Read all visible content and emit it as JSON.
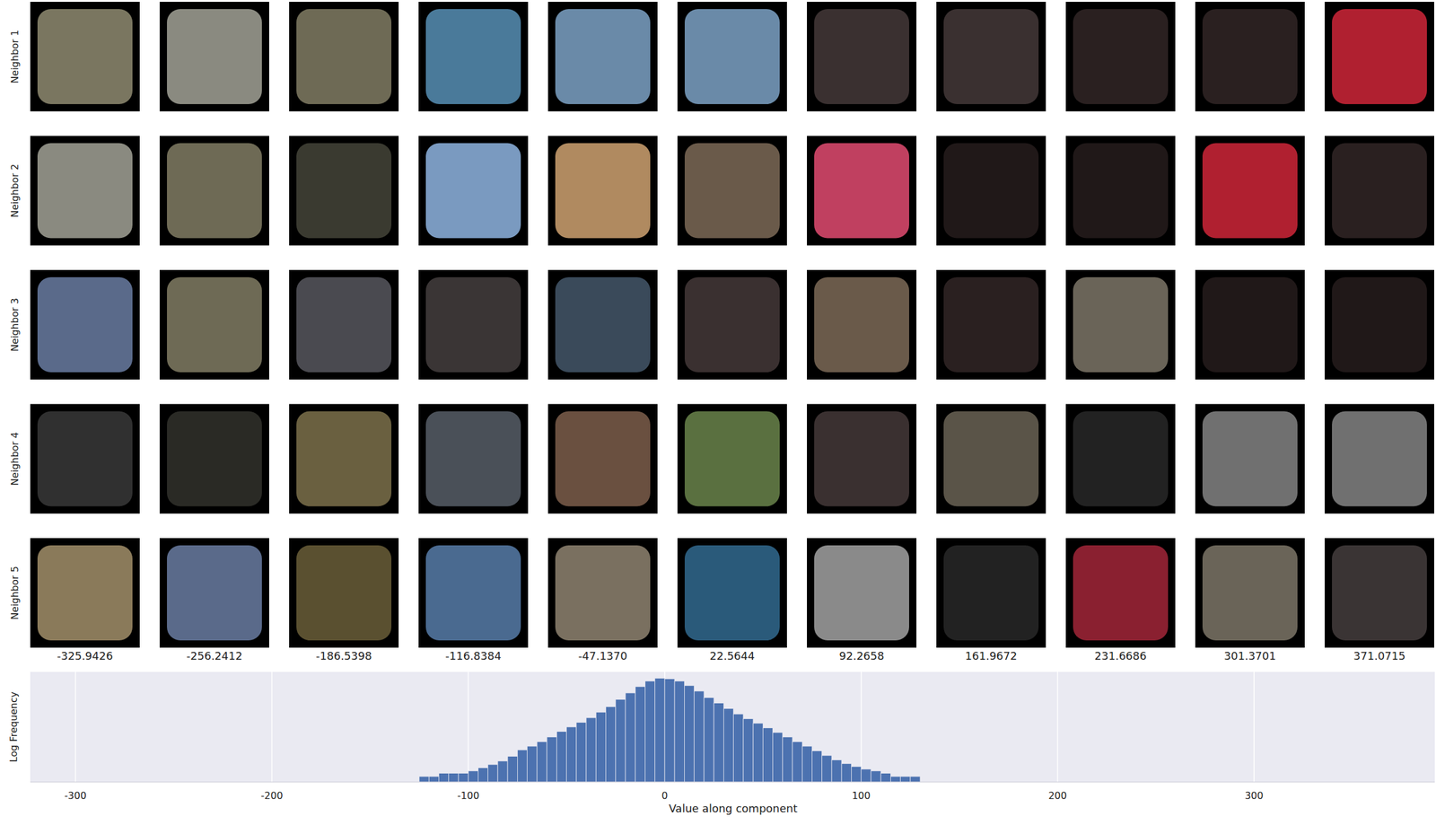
{
  "neighbors": {
    "row_labels": [
      "Neighbor 1",
      "Neighbor 2",
      "Neighbor 3",
      "Neighbor 4",
      "Neighbor 5"
    ],
    "column_labels": [
      "-325.9426",
      "-256.2412",
      "-186.5398",
      "-116.8384",
      "-47.1370",
      "22.5644",
      "92.2658",
      "161.9672",
      "231.6686",
      "301.3701",
      "371.0715"
    ]
  },
  "chart_data": {
    "type": "histogram",
    "x_label": "Value along component",
    "y_label": "Log Frequency",
    "bins": [
      -125,
      -120,
      -115,
      -110,
      -105,
      -100,
      -95,
      -90,
      -85,
      -80,
      -75,
      -70,
      -65,
      -60,
      -55,
      -50,
      -45,
      -40,
      -35,
      -30,
      -25,
      -20,
      -15,
      -10,
      -5,
      0,
      5,
      10,
      15,
      20,
      25,
      30,
      35,
      40,
      45,
      50,
      55,
      60,
      65,
      70,
      75,
      80,
      85,
      90,
      95,
      100,
      105,
      110,
      115,
      120,
      125,
      130
    ],
    "counts": [
      2,
      2,
      3,
      3,
      3,
      4,
      6,
      9,
      14,
      25,
      56,
      89,
      158,
      282,
      562,
      1000,
      1778,
      3162,
      6310,
      12589,
      31623,
      70795,
      158489,
      316228,
      446684,
      416869,
      316228,
      177828,
      89125,
      39811,
      19953,
      10000,
      5012,
      2818,
      1585,
      891,
      501,
      282,
      158,
      89,
      50,
      28,
      16,
      10,
      7,
      5,
      4,
      3,
      2,
      2,
      2
    ],
    "color": "#4c72b0",
    "xlim": [
      -323,
      392
    ],
    "xticks": [
      -300,
      -200,
      -100,
      0,
      100,
      200,
      300
    ],
    "ylim": [
      1,
      1000000
    ],
    "log": "y",
    "grid": true,
    "tick_labels": "x"
  }
}
